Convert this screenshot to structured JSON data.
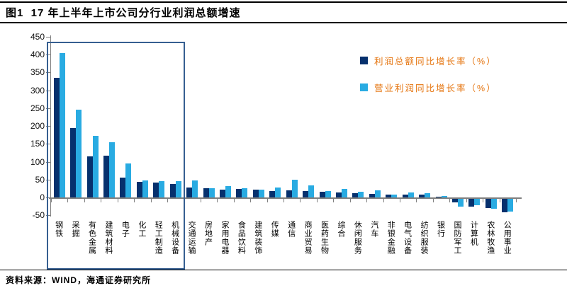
{
  "figure": {
    "title": "图1  17 年上半年上市公司分行业利润总额增速",
    "source": "资料来源：WIND，海通证券研究所"
  },
  "colors": {
    "series_dark": "#06306d",
    "series_light": "#29abe2",
    "legend_text": "#e5740e",
    "axis": "#7f7f7f",
    "highlight_box_border": "#365f91",
    "rule": "#000000"
  },
  "legend": [
    {
      "label": "利润总额同比增长率（%）",
      "color": "#06306d"
    },
    {
      "label": "营业利润同比增长率（%）",
      "color": "#29abe2"
    }
  ],
  "chart_data": {
    "type": "bar",
    "title": "17 年上半年上市公司分行业利润总额增速",
    "xlabel": "",
    "ylabel": "",
    "ylim": [
      -50,
      450
    ],
    "yticks": [
      450,
      400,
      350,
      300,
      250,
      200,
      150,
      100,
      50,
      0,
      -50
    ],
    "grid": false,
    "legend_position": "top-right",
    "categories": [
      "钢铁",
      "采掘",
      "有色金属",
      "建筑材料",
      "电子",
      "化工",
      "轻工制造",
      "机械设备",
      "交通运输",
      "房地产",
      "家用电器",
      "食品饮料",
      "建筑装饰",
      "传媒",
      "通信",
      "商业贸易",
      "医药生物",
      "综合",
      "休闲服务",
      "汽车",
      "非银金融",
      "电气设备",
      "纺织服装",
      "银行",
      "国防军工",
      "计算机",
      "农林牧渔",
      "公用事业"
    ],
    "series": [
      {
        "name": "利润总额同比增长率（%）",
        "color": "#06306d",
        "values": [
          335,
          194,
          115,
          116,
          55,
          43,
          42,
          38,
          28,
          26,
          21,
          23,
          22,
          18,
          19,
          18,
          15,
          14,
          11,
          9,
          7,
          8,
          7,
          2,
          -10,
          -22,
          -26,
          -38
        ]
      },
      {
        "name": "营业利润同比增长率（%）",
        "color": "#29abe2",
        "values": [
          405,
          245,
          172,
          154,
          95,
          47,
          45,
          45,
          47,
          26,
          31,
          26,
          21,
          27,
          49,
          33,
          18,
          24,
          16,
          20,
          7,
          13,
          12,
          3,
          -22,
          -17,
          -27,
          -35
        ]
      }
    ],
    "highlight_box": {
      "from_category": "钢铁",
      "to_category": "机械设备"
    }
  }
}
